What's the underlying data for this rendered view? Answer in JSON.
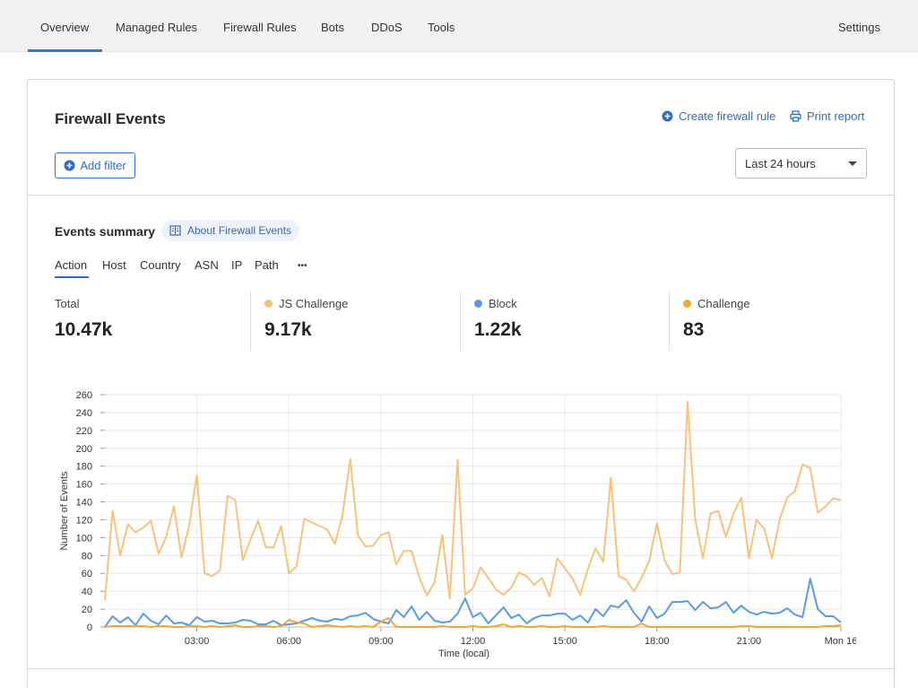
{
  "nav": {
    "tabs": [
      {
        "label": "Overview"
      },
      {
        "label": "Managed Rules"
      },
      {
        "label": "Firewall Rules"
      },
      {
        "label": "Bots"
      },
      {
        "label": "DDoS"
      },
      {
        "label": "Tools"
      }
    ],
    "settings": "Settings",
    "active": "Overview"
  },
  "card": {
    "title": "Firewall Events",
    "create_rule": "Create firewall rule",
    "print_report": "Print report",
    "add_filter": "Add filter",
    "time_range": "Last 24 hours"
  },
  "summary": {
    "title": "Events summary",
    "about": "About Firewall Events",
    "tabs": [
      "Action",
      "Host",
      "Country",
      "ASN",
      "IP",
      "Path",
      "•••"
    ],
    "active_tab": "Action",
    "stats": [
      {
        "label": "Total",
        "value": "10.47k"
      },
      {
        "label": "JS Challenge",
        "value": "9.17k",
        "color": "#f7c06a"
      },
      {
        "label": "Block",
        "value": "1.22k",
        "color": "#5b9ae8"
      },
      {
        "label": "Challenge",
        "value": "83",
        "color": "#f0a63a"
      }
    ]
  },
  "colors": {
    "accent": "#2c6ec4",
    "js_challenge": "#f7c27a",
    "block": "#5b9ae8",
    "challenge": "#f0a63a"
  },
  "chart_data": {
    "type": "line",
    "xlabel": "Time (local)",
    "ylabel": "Number of Events",
    "ylim": [
      0,
      260
    ],
    "yticks": [
      0,
      20,
      40,
      60,
      80,
      100,
      120,
      140,
      160,
      180,
      200,
      220,
      240,
      260
    ],
    "xticks": [
      {
        "label": "03:00",
        "h": 3
      },
      {
        "label": "06:00",
        "h": 6
      },
      {
        "label": "09:00",
        "h": 9
      },
      {
        "label": "12:00",
        "h": 12
      },
      {
        "label": "15:00",
        "h": 15
      },
      {
        "label": "18:00",
        "h": 18
      },
      {
        "label": "21:00",
        "h": 21
      },
      {
        "label": "Mon 16",
        "h": 24
      }
    ],
    "x_start_h": 0,
    "x_step_h": 0.25,
    "grid": true,
    "series": [
      {
        "name": "JS Challenge",
        "values": [
          30,
          130,
          80,
          115,
          106,
          111,
          119,
          82,
          101,
          135,
          78,
          114,
          170,
          60,
          57,
          63,
          147,
          142,
          75,
          98,
          119,
          89,
          89,
          113,
          60,
          68,
          121,
          117,
          113,
          109,
          93,
          125,
          188,
          103,
          90,
          91,
          103,
          106,
          70,
          85,
          85,
          56,
          35,
          50,
          103,
          32,
          187,
          36,
          43,
          67,
          55,
          42,
          36,
          44,
          61,
          57,
          47,
          55,
          34,
          77,
          66,
          54,
          36,
          65,
          88,
          73,
          167,
          57,
          53,
          40,
          55,
          74,
          116,
          75,
          59,
          61,
          252,
          120,
          77,
          127,
          130,
          101,
          127,
          145,
          77,
          120,
          110,
          77,
          120,
          145,
          152,
          182,
          178,
          128,
          135,
          144,
          142
        ],
        "color": "#f7c27a"
      },
      {
        "name": "Block",
        "values": [
          0,
          12,
          5,
          11,
          2,
          15,
          7,
          3,
          13,
          4,
          5,
          2,
          11,
          6,
          7,
          4,
          4,
          5,
          8,
          7,
          3,
          3,
          7,
          2,
          3,
          4,
          7,
          10,
          7,
          6,
          9,
          8,
          12,
          13,
          16,
          9,
          6,
          4,
          19,
          11,
          23,
          8,
          17,
          7,
          5,
          6,
          15,
          32,
          11,
          16,
          4,
          13,
          22,
          10,
          14,
          4,
          10,
          13,
          13,
          15,
          15,
          8,
          13,
          5,
          20,
          12,
          24,
          22,
          30,
          16,
          6,
          23,
          10,
          15,
          28,
          28,
          29,
          19,
          28,
          21,
          22,
          28,
          16,
          24,
          17,
          14,
          17,
          15,
          16,
          21,
          14,
          11,
          54,
          20,
          12,
          12,
          5
        ],
        "color": "#5b9ae8"
      },
      {
        "name": "Challenge",
        "values": [
          0,
          1,
          1,
          1,
          1,
          1,
          0,
          1,
          1,
          0,
          0,
          1,
          1,
          0,
          1,
          0,
          1,
          2,
          0,
          0,
          1,
          1,
          0,
          1,
          8,
          5,
          4,
          0,
          1,
          2,
          1,
          0,
          1,
          0,
          1,
          0,
          6,
          10,
          0,
          0,
          0,
          0,
          0,
          0,
          1,
          0,
          0,
          0,
          1,
          0,
          0,
          1,
          3,
          0,
          1,
          0,
          0,
          1,
          0,
          0,
          1,
          0,
          0,
          0,
          0,
          1,
          0,
          0,
          0,
          0,
          4,
          0,
          0,
          0,
          0,
          0,
          0,
          0,
          0,
          0,
          0,
          0,
          0,
          1,
          1,
          0,
          0,
          0,
          0,
          0,
          0,
          0,
          0,
          0,
          1,
          1,
          2
        ],
        "color": "#f0a63a"
      }
    ]
  }
}
